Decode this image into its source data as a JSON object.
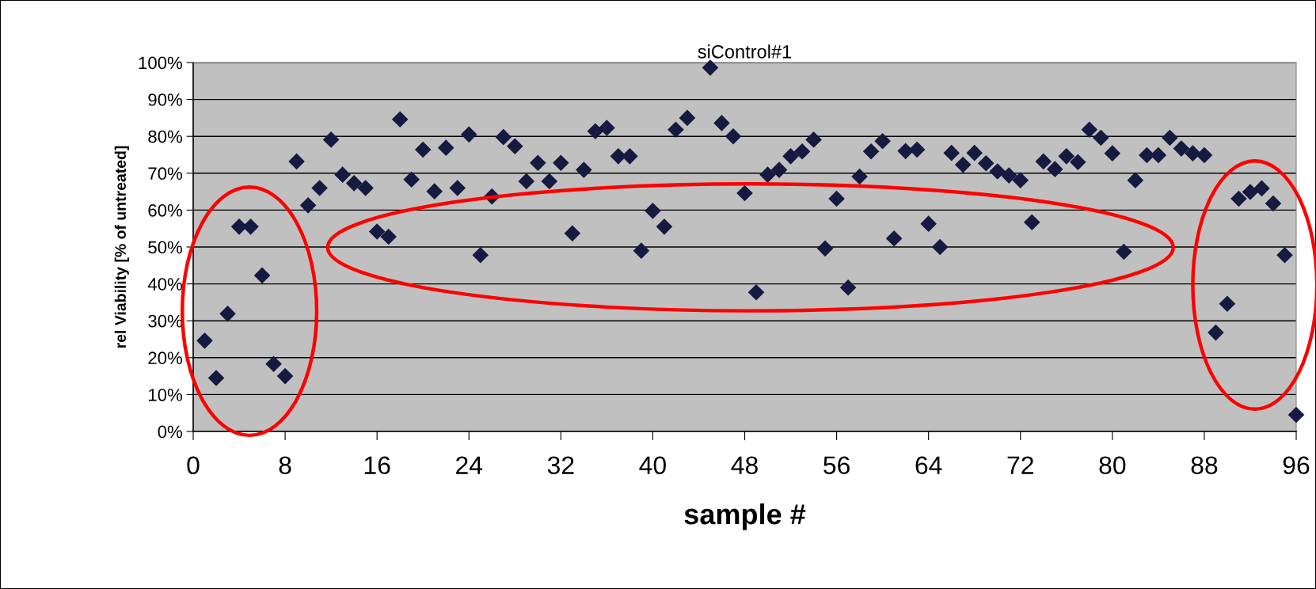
{
  "chart_data": {
    "type": "scatter",
    "title": "siControl#1",
    "xlabel": "sample #",
    "ylabel": "rel Viability [% of untreated]",
    "x": [
      1,
      2,
      3,
      4,
      5,
      6,
      7,
      8,
      9,
      10,
      11,
      12,
      13,
      14,
      15,
      16,
      17,
      18,
      19,
      20,
      21,
      22,
      23,
      24,
      25,
      26,
      27,
      28,
      29,
      30,
      31,
      32,
      33,
      34,
      35,
      36,
      37,
      38,
      39,
      40,
      41,
      42,
      43,
      44,
      45,
      46,
      47,
      48,
      49,
      50,
      51,
      52,
      53,
      54,
      55,
      56,
      57,
      58,
      59,
      60,
      61,
      62,
      63,
      64,
      65,
      66,
      67,
      68,
      69,
      70,
      71,
      72,
      73,
      74,
      75,
      76,
      77,
      78,
      79,
      80,
      81,
      82,
      83,
      84,
      85,
      86,
      87,
      88,
      89,
      90,
      91,
      92,
      93,
      94,
      95,
      96
    ],
    "series": [
      {
        "color": "#161a40",
        "values": [
          24.6,
          14.5,
          31.9,
          55.5,
          55.5,
          42.3,
          18.3,
          15.0,
          73.2,
          61.3,
          66.0,
          79.1,
          69.6,
          67.3,
          66.0,
          54.2,
          52.8,
          84.6,
          68.3,
          76.4,
          65.1,
          76.9,
          66.0,
          80.5,
          47.8,
          63.7,
          79.8,
          77.3,
          67.8,
          72.8,
          67.8,
          72.8,
          53.7,
          70.9,
          81.4,
          82.3,
          74.6,
          74.6,
          49.0,
          59.8,
          55.5,
          81.8,
          85.0,
          null,
          98.6,
          83.6,
          80.0,
          64.6,
          37.7,
          69.6,
          70.9,
          74.6,
          75.9,
          79.1,
          49.6,
          63.1,
          39.0,
          69.1,
          75.9,
          78.7,
          52.3,
          76.0,
          76.4,
          56.3,
          50.0,
          75.5,
          72.3,
          75.5,
          72.7,
          70.5,
          69.4,
          68.1,
          56.7,
          73.2,
          71.1,
          74.6,
          73.0,
          81.8,
          79.6,
          75.4,
          48.7,
          68.1,
          74.9,
          74.9,
          79.6,
          76.7,
          75.4,
          74.9,
          26.8,
          34.6,
          63.1,
          64.9,
          65.9,
          61.8,
          47.8,
          4.5
        ]
      }
    ],
    "marker": "diamond",
    "grid": "y",
    "legend": false,
    "xlim": [
      0,
      96
    ],
    "xticks": [
      0,
      8,
      16,
      24,
      32,
      40,
      48,
      56,
      64,
      72,
      80,
      88,
      96
    ],
    "ylim": [
      0,
      100
    ],
    "yticks": [
      {
        "value": 0,
        "label": "0%"
      },
      {
        "value": 10,
        "label": "10%"
      },
      {
        "value": 20,
        "label": "20%"
      },
      {
        "value": 30,
        "label": "30%"
      },
      {
        "value": 40,
        "label": "40%"
      },
      {
        "value": 50,
        "label": "50%"
      },
      {
        "value": 60,
        "label": "60%"
      },
      {
        "value": 70,
        "label": "70%"
      },
      {
        "value": 80,
        "label": "80%"
      },
      {
        "value": 90,
        "label": "90%"
      },
      {
        "value": 100,
        "label": "100%"
      }
    ]
  }
}
